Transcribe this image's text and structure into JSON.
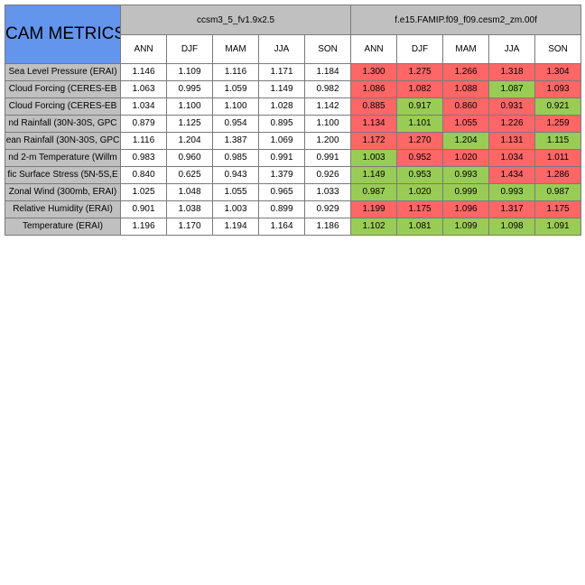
{
  "title": "CAM METRICS",
  "colors": {
    "header_blue": "#6495ed",
    "header_gray": "#c0c0c0",
    "worse_red": "#ff6666",
    "better_green": "#99cc55"
  },
  "chart_data": {
    "type": "table",
    "title": "CAM METRICS",
    "cases": [
      {
        "name": "ccsm3_5_fv1.9x2.5",
        "baseline": true
      },
      {
        "name": "f.e15.FAMIP.f09_f09.cesm2_zm.00f",
        "baseline": false
      }
    ],
    "seasons": [
      "ANN",
      "DJF",
      "MAM",
      "JJA",
      "SON"
    ],
    "rows": [
      {
        "label": "Sea Level Pressure (ERAI)",
        "case1": [
          "1.146",
          "1.109",
          "1.116",
          "1.171",
          "1.184"
        ],
        "case2": [
          "1.300",
          "1.275",
          "1.266",
          "1.318",
          "1.304"
        ],
        "case2_status": [
          "worse",
          "worse",
          "worse",
          "worse",
          "worse"
        ]
      },
      {
        "label": "Cloud Forcing (CERES-EB",
        "case1": [
          "1.063",
          "0.995",
          "1.059",
          "1.149",
          "0.982"
        ],
        "case2": [
          "1.086",
          "1.082",
          "1.088",
          "1.087",
          "1.093"
        ],
        "case2_status": [
          "worse",
          "worse",
          "worse",
          "better",
          "worse"
        ]
      },
      {
        "label": "Cloud Forcing (CERES-EB",
        "case1": [
          "1.034",
          "1.100",
          "1.100",
          "1.028",
          "1.142"
        ],
        "case2": [
          "0.885",
          "0.917",
          "0.860",
          "0.931",
          "0.921"
        ],
        "case2_status": [
          "worse",
          "better",
          "worse",
          "worse",
          "better"
        ]
      },
      {
        "label": "nd Rainfall (30N-30S, GPC",
        "case1": [
          "0.879",
          "1.125",
          "0.954",
          "0.895",
          "1.100"
        ],
        "case2": [
          "1.134",
          "1.101",
          "1.055",
          "1.226",
          "1.259"
        ],
        "case2_status": [
          "worse",
          "better",
          "worse",
          "worse",
          "worse"
        ]
      },
      {
        "label": "ean Rainfall (30N-30S, GPC",
        "case1": [
          "1.116",
          "1.204",
          "1.387",
          "1.069",
          "1.200"
        ],
        "case2": [
          "1.172",
          "1.270",
          "1.204",
          "1.131",
          "1.115"
        ],
        "case2_status": [
          "worse",
          "worse",
          "better",
          "worse",
          "better"
        ]
      },
      {
        "label": "nd 2-m Temperature (Willm",
        "case1": [
          "0.983",
          "0.960",
          "0.985",
          "0.991",
          "0.991"
        ],
        "case2": [
          "1.003",
          "0.952",
          "1.020",
          "1.034",
          "1.011"
        ],
        "case2_status": [
          "better",
          "worse",
          "worse",
          "worse",
          "worse"
        ]
      },
      {
        "label": "fic Surface Stress (5N-5S,E",
        "case1": [
          "0.840",
          "0.625",
          "0.943",
          "1.379",
          "0.926"
        ],
        "case2": [
          "1.149",
          "0.953",
          "0.993",
          "1.434",
          "1.286"
        ],
        "case2_status": [
          "better",
          "better",
          "better",
          "worse",
          "worse"
        ]
      },
      {
        "label": "Zonal Wind (300mb, ERAI)",
        "case1": [
          "1.025",
          "1.048",
          "1.055",
          "0.965",
          "1.033"
        ],
        "case2": [
          "0.987",
          "1.020",
          "0.999",
          "0.993",
          "0.987"
        ],
        "case2_status": [
          "better",
          "better",
          "better",
          "better",
          "better"
        ]
      },
      {
        "label": "Relative Humidity (ERAI)",
        "case1": [
          "0.901",
          "1.038",
          "1.003",
          "0.899",
          "0.929"
        ],
        "case2": [
          "1.199",
          "1.175",
          "1.096",
          "1.317",
          "1.175"
        ],
        "case2_status": [
          "worse",
          "worse",
          "worse",
          "worse",
          "worse"
        ]
      },
      {
        "label": "Temperature (ERAI)",
        "case1": [
          "1.196",
          "1.170",
          "1.194",
          "1.164",
          "1.186"
        ],
        "case2": [
          "1.102",
          "1.081",
          "1.099",
          "1.098",
          "1.091"
        ],
        "case2_status": [
          "better",
          "better",
          "better",
          "better",
          "better"
        ]
      }
    ]
  }
}
